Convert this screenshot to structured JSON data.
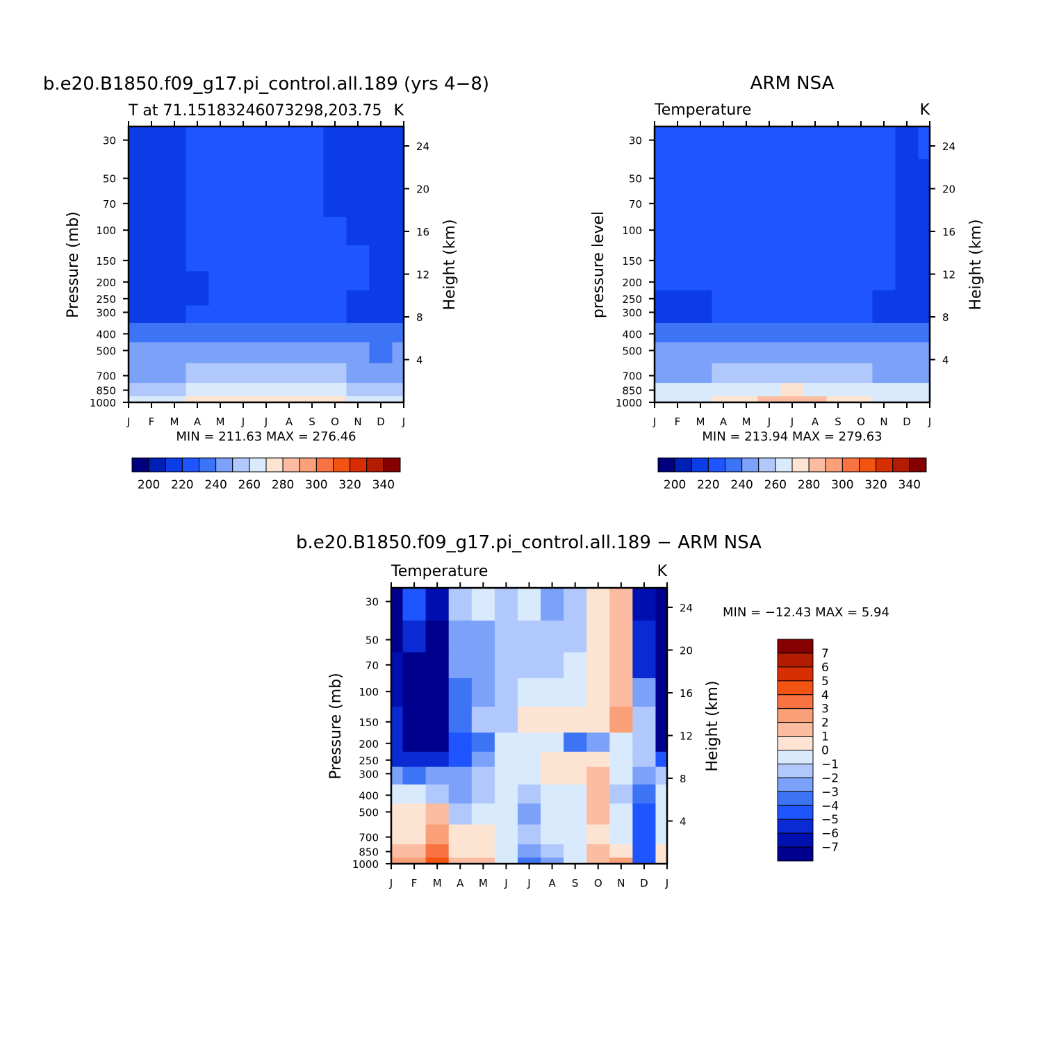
{
  "chart_data": [
    {
      "type": "heatmap",
      "title": "b.e20.B1850.f09_g17.pi_control.all.189 (yrs 4−8)",
      "subtitle_left": "T at 71.15183246073298,203.75",
      "subtitle_right": "K",
      "ylabel": "Pressure (mb)",
      "ylabel_right": "Height (km)",
      "x_ticks": [
        "J",
        "F",
        "M",
        "A",
        "M",
        "J",
        "J",
        "A",
        "S",
        "O",
        "N",
        "D",
        "J"
      ],
      "y_ticks": [
        30,
        50,
        70,
        100,
        150,
        200,
        250,
        300,
        400,
        500,
        700,
        850,
        1000
      ],
      "y_right_ticks": [
        4,
        8,
        12,
        16,
        20,
        24
      ],
      "ylim": [
        1000,
        25
      ],
      "stats": "MIN = 211.63 MAX = 276.46",
      "grid": [
        [
          208,
          208,
          212,
          219,
          219,
          219,
          219,
          219,
          219,
          214,
          208,
          208,
          208
        ],
        [
          208,
          208,
          212,
          219,
          219,
          219,
          219,
          219,
          219,
          214,
          208,
          208,
          208
        ],
        [
          208,
          208,
          212,
          219,
          219,
          219,
          219,
          219,
          219,
          214,
          208,
          208,
          208
        ],
        [
          208,
          208,
          212,
          219,
          219,
          219,
          219,
          219,
          219,
          219,
          214,
          208,
          208
        ],
        [
          208,
          208,
          212,
          219,
          219,
          219,
          219,
          219,
          219,
          219,
          219,
          214,
          208
        ],
        [
          208,
          208,
          208,
          208,
          219,
          219,
          219,
          219,
          219,
          219,
          219,
          208,
          208
        ],
        [
          208,
          208,
          208,
          208,
          219,
          219,
          219,
          219,
          219,
          219,
          208,
          208,
          208
        ],
        [
          214,
          214,
          214,
          219,
          219,
          219,
          219,
          219,
          219,
          219,
          214,
          214,
          214
        ],
        [
          226,
          226,
          226,
          226,
          228,
          229,
          229,
          229,
          229,
          226,
          226,
          226,
          226
        ],
        [
          236,
          236,
          236,
          236,
          238,
          241,
          241,
          241,
          238,
          236,
          236,
          234,
          236
        ],
        [
          243,
          243,
          243,
          245,
          248,
          251,
          252,
          251,
          248,
          245,
          243,
          242,
          243
        ],
        [
          252,
          252,
          252,
          255,
          259,
          262,
          263,
          262,
          259,
          255,
          252,
          250,
          252
        ],
        [
          262,
          262,
          264,
          266,
          268,
          273,
          274,
          273,
          269,
          266,
          264,
          261,
          261
        ]
      ]
    },
    {
      "type": "heatmap",
      "title": "ARM NSA",
      "subtitle_left": "Temperature",
      "subtitle_right": "K",
      "ylabel": "pressure level",
      "ylabel_right": "Height (km)",
      "x_ticks": [
        "J",
        "F",
        "M",
        "A",
        "M",
        "J",
        "J",
        "A",
        "S",
        "O",
        "N",
        "D",
        "J"
      ],
      "y_ticks": [
        30,
        50,
        70,
        100,
        150,
        200,
        250,
        300,
        400,
        500,
        700,
        850,
        1000
      ],
      "y_right_ticks": [
        4,
        8,
        12,
        16,
        20,
        24
      ],
      "ylim": [
        1000,
        25
      ],
      "stats": "MIN = 213.94 MAX = 279.63",
      "grid": [
        [
          219,
          219,
          219,
          219,
          219,
          219,
          222,
          219,
          219,
          219,
          219,
          212,
          219
        ],
        [
          219,
          219,
          219,
          219,
          219,
          219,
          219,
          219,
          219,
          219,
          219,
          212,
          212
        ],
        [
          219,
          219,
          219,
          219,
          219,
          219,
          219,
          219,
          219,
          219,
          219,
          212,
          212
        ],
        [
          219,
          219,
          219,
          219,
          219,
          219,
          219,
          219,
          219,
          219,
          219,
          212,
          212
        ],
        [
          219,
          219,
          219,
          219,
          219,
          219,
          219,
          219,
          219,
          219,
          219,
          212,
          212
        ],
        [
          219,
          219,
          219,
          219,
          219,
          219,
          219,
          219,
          219,
          219,
          219,
          212,
          212
        ],
        [
          212,
          212,
          212,
          219,
          219,
          219,
          219,
          219,
          219,
          219,
          212,
          212,
          212
        ],
        [
          212,
          212,
          212,
          216,
          219,
          219,
          219,
          219,
          219,
          219,
          214,
          212,
          212
        ],
        [
          226,
          226,
          226,
          226,
          228,
          229,
          231,
          229,
          228,
          226,
          226,
          226,
          226
        ],
        [
          236,
          236,
          236,
          236,
          238,
          242,
          243,
          242,
          238,
          236,
          236,
          236,
          236
        ],
        [
          244,
          244,
          244,
          245,
          248,
          252,
          254,
          252,
          248,
          245,
          244,
          244,
          244
        ],
        [
          255,
          255,
          255,
          257,
          260,
          263,
          265,
          263,
          260,
          257,
          255,
          255,
          255
        ],
        [
          263,
          263,
          263,
          265,
          268,
          275,
          278,
          275,
          268,
          265,
          263,
          263,
          263
        ]
      ]
    },
    {
      "type": "heatmap",
      "title": "b.e20.B1850.f09_g17.pi_control.all.189 − ARM NSA",
      "subtitle_left": "Temperature",
      "subtitle_right": "K",
      "ylabel": "Pressure (mb)",
      "ylabel_right": "Height (km)",
      "x_ticks": [
        "J",
        "F",
        "M",
        "A",
        "M",
        "J",
        "J",
        "A",
        "S",
        "O",
        "N",
        "D",
        "J"
      ],
      "y_ticks": [
        30,
        50,
        70,
        100,
        150,
        200,
        250,
        300,
        400,
        500,
        700,
        850,
        1000
      ],
      "y_right_ticks": [
        4,
        8,
        12,
        16,
        20,
        24
      ],
      "ylim": [
        1000,
        25
      ],
      "stats": "MIN = −12.43 MAX =    5.94",
      "grid": [
        [
          -8,
          -5,
          -7,
          -1.5,
          -0.5,
          -1.5,
          -0.5,
          -2.5,
          -1.5,
          0.5,
          1.5,
          -7,
          -8
        ],
        [
          -8,
          -6,
          -8,
          -3,
          -2.5,
          -1.5,
          -1.5,
          -1.5,
          -1.5,
          0.5,
          1.5,
          -6,
          -8
        ],
        [
          -7,
          -8,
          -8,
          -3,
          -3,
          -1.5,
          -1.5,
          -1.5,
          -1,
          0.5,
          1.5,
          -6,
          -8
        ],
        [
          -7,
          -8,
          -8,
          -4,
          -2.5,
          -1.5,
          -0.5,
          -0.5,
          -0.5,
          0.5,
          1.5,
          -3,
          -8
        ],
        [
          -6,
          -8,
          -8,
          -4,
          -2,
          -1.5,
          0.5,
          0.5,
          0.5,
          0.5,
          2.5,
          -2,
          -8
        ],
        [
          -6,
          -8,
          -8,
          -5,
          -4,
          -1,
          -0.5,
          -0.5,
          -3.5,
          -2.5,
          -0.5,
          -1.5,
          -8
        ],
        [
          -6,
          -6,
          -6,
          -5,
          -3,
          -1,
          -0.5,
          0.5,
          0.5,
          0.5,
          -0.5,
          -2,
          -5
        ],
        [
          -3,
          -4,
          -3,
          -3,
          -2,
          -0.5,
          -0.5,
          0.5,
          0.5,
          1.5,
          -0.5,
          -2.5,
          -2
        ],
        [
          -1,
          -1,
          -2,
          -3,
          -1.5,
          -0.5,
          -1.5,
          -0.5,
          -0.5,
          1.5,
          -1.5,
          -4,
          -1
        ],
        [
          0.5,
          0.5,
          1.5,
          -2,
          -1,
          -0.5,
          -2.5,
          -1,
          -0.5,
          1.5,
          -1,
          -5,
          -0.5
        ],
        [
          0.5,
          0.5,
          2.5,
          0.5,
          0.5,
          -0.5,
          -2,
          -0.5,
          -0.5,
          0.5,
          -0.5,
          -5,
          -0.5
        ],
        [
          1.5,
          1.5,
          3.5,
          0.5,
          0.5,
          -1,
          -3,
          -2,
          -1,
          1.5,
          0.5,
          -5,
          0.5
        ],
        [
          2.5,
          2.5,
          4.5,
          1.5,
          1.5,
          -1,
          -3.5,
          -2.5,
          -1,
          1.5,
          2.5,
          -5,
          0.5
        ]
      ]
    }
  ],
  "colorbar_main": {
    "colors": [
      "#00007f",
      "#001fb4",
      "#0c3ce6",
      "#1f55ff",
      "#3d73f5",
      "#7ba1f9",
      "#b1c8fc",
      "#d9eafd",
      "#fde4d2",
      "#fcbca1",
      "#faa079",
      "#f87341",
      "#f35414",
      "#d72e04",
      "#b31c00",
      "#850000"
    ],
    "labels": [
      "200",
      "220",
      "240",
      "260",
      "280",
      "300",
      "320",
      "340"
    ]
  },
  "colorbar_diff": {
    "colors": [
      "#00008f",
      "#0010b0",
      "#0a2ad4",
      "#1f55ff",
      "#3d73f5",
      "#7ba1f9",
      "#b1c8fc",
      "#d9eafd",
      "#fde4d2",
      "#fcbca1",
      "#faa079",
      "#f87341",
      "#f35414",
      "#d72e04",
      "#b31c00",
      "#850000"
    ],
    "labels": [
      "7",
      "6",
      "5",
      "4",
      "3",
      "2",
      "1",
      "0",
      "−1",
      "−2",
      "−3",
      "−4",
      "−5",
      "−6",
      "−7"
    ]
  }
}
